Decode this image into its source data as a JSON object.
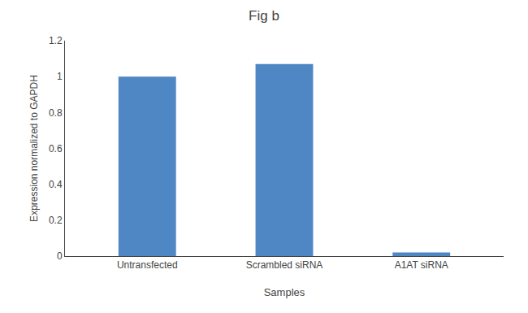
{
  "chart_data": {
    "type": "bar",
    "title": "Fig b",
    "categories": [
      "Untransfected",
      "Scrambled siRNA",
      "A1AT siRNA"
    ],
    "values": [
      1.0,
      1.07,
      0.02
    ],
    "color": "#4e87c4",
    "xlabel": "Samples",
    "ylabel": "Expression normalized to GAPDH",
    "ylim": [
      0,
      1.2
    ],
    "yticks": [
      0,
      0.2,
      0.4,
      0.6,
      0.8,
      1.0,
      1.2
    ],
    "grid": false
  }
}
